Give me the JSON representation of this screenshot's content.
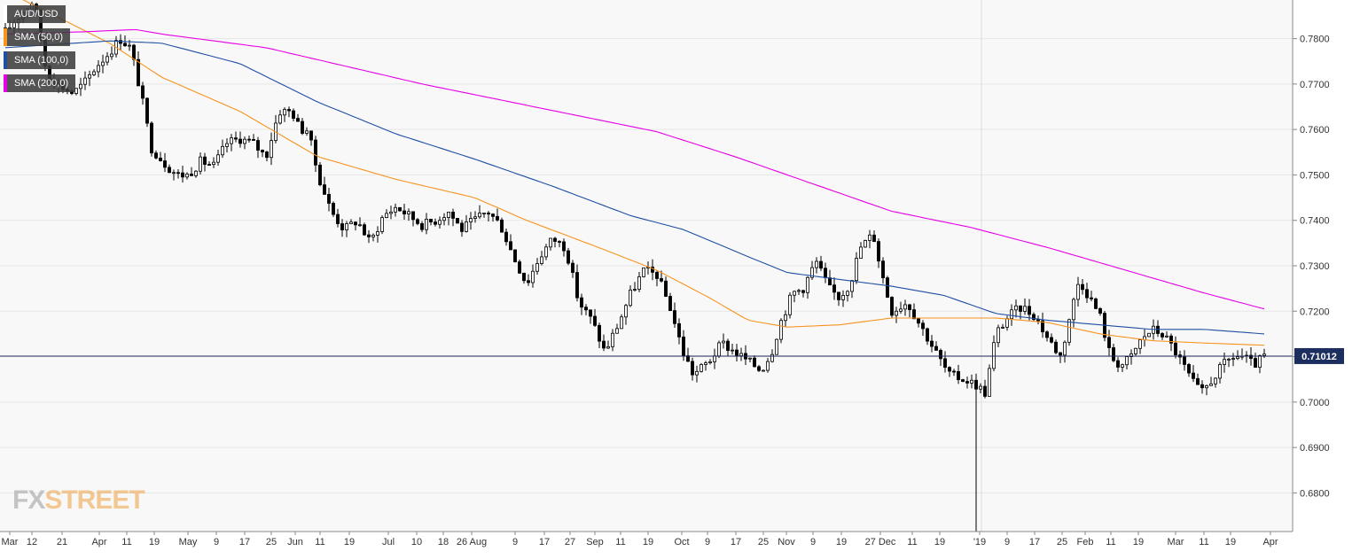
{
  "chart_data": {
    "type": "candlestick",
    "instrument": "AUD/USD",
    "ylim": [
      0.6715,
      0.7885
    ],
    "y_ticks": [
      "0.7800",
      "0.7700",
      "0.7600",
      "0.7500",
      "0.7400",
      "0.7300",
      "0.7200",
      "0.7100",
      "0.7000",
      "0.6900",
      "0.6800"
    ],
    "y_tick_values": [
      0.78,
      0.77,
      0.76,
      0.75,
      0.74,
      0.73,
      0.72,
      0.71,
      0.7,
      0.69,
      0.68
    ],
    "x_tick_labels": [
      "Mar",
      "12",
      "21",
      "Apr",
      "11",
      "19",
      "May",
      "9",
      "17",
      "25",
      "Jun",
      "11",
      "19",
      "Jul",
      "10",
      "18",
      "26 Aug",
      "9",
      "17",
      "27",
      "Sep",
      "11",
      "19",
      "Oct",
      "9",
      "17",
      "25",
      "Nov",
      "9",
      "19",
      "27 Dec",
      "11",
      "19",
      "'19",
      "9",
      "17",
      "25",
      "Feb",
      "11",
      "19",
      "Mar",
      "11",
      "19",
      "Apr"
    ],
    "current_price_label": "0.71012",
    "current_price": 0.71012,
    "year_divider_label": "'19",
    "sessions": 285,
    "anchors": [
      [
        0,
        0.7815
      ],
      [
        6,
        0.7855
      ],
      [
        11,
        0.7885
      ],
      [
        16,
        0.772
      ],
      [
        20,
        0.77
      ],
      [
        26,
        0.768
      ],
      [
        30,
        0.77
      ],
      [
        35,
        0.774
      ],
      [
        40,
        0.777
      ],
      [
        44,
        0.78
      ],
      [
        48,
        0.778
      ],
      [
        52,
        0.768
      ],
      [
        56,
        0.756
      ],
      [
        62,
        0.752
      ],
      [
        66,
        0.75
      ],
      [
        70,
        0.75
      ],
      [
        75,
        0.753
      ],
      [
        80,
        0.752
      ],
      [
        85,
        0.757
      ],
      [
        90,
        0.758
      ],
      [
        95,
        0.757
      ],
      [
        100,
        0.754
      ],
      [
        105,
        0.764
      ],
      [
        110,
        0.764
      ],
      [
        113,
        0.76
      ],
      [
        116,
        0.76
      ],
      [
        120,
        0.75
      ],
      [
        125,
        0.742
      ],
      [
        130,
        0.738
      ],
      [
        135,
        0.74
      ],
      [
        140,
        0.735
      ],
      [
        145,
        0.741
      ],
      [
        150,
        0.743
      ],
      [
        155,
        0.741
      ],
      [
        160,
        0.739
      ],
      [
        165,
        0.74
      ],
      [
        170,
        0.742
      ],
      [
        175,
        0.738
      ],
      [
        180,
        0.74
      ],
      [
        185,
        0.742
      ],
      [
        190,
        0.739
      ],
      [
        195,
        0.732
      ],
      [
        200,
        0.726
      ],
      [
        205,
        0.732
      ],
      [
        210,
        0.736
      ],
      [
        215,
        0.734
      ],
      [
        220,
        0.722
      ],
      [
        225,
        0.718
      ],
      [
        230,
        0.711
      ],
      [
        235,
        0.717
      ],
      [
        240,
        0.724
      ],
      [
        245,
        0.729
      ],
      [
        250,
        0.728
      ],
      [
        255,
        0.721
      ],
      [
        260,
        0.711
      ],
      [
        264,
        0.706
      ],
      [
        270,
        0.709
      ],
      [
        275,
        0.713
      ],
      [
        280,
        0.711
      ],
      [
        285,
        0.709
      ],
      [
        290,
        0.707
      ],
      [
        294,
        0.711
      ],
      [
        297,
        0.717
      ],
      [
        302,
        0.724
      ],
      [
        306,
        0.725
      ],
      [
        311,
        0.731
      ],
      [
        316,
        0.725
      ],
      [
        320,
        0.723
      ],
      [
        324,
        0.726
      ],
      [
        328,
        0.734
      ],
      [
        333,
        0.737
      ],
      [
        336,
        0.729
      ],
      [
        340,
        0.72
      ],
      [
        346,
        0.722
      ],
      [
        350,
        0.718
      ],
      [
        356,
        0.712
      ],
      [
        362,
        0.706
      ],
      [
        368,
        0.705
      ],
      [
        372,
        0.704
      ],
      [
        376,
        0.702
      ],
      [
        380,
        0.715
      ],
      [
        385,
        0.719
      ],
      [
        390,
        0.721
      ],
      [
        395,
        0.719
      ],
      [
        400,
        0.714
      ],
      [
        405,
        0.71
      ],
      [
        408,
        0.718
      ],
      [
        412,
        0.727
      ],
      [
        416,
        0.723
      ],
      [
        420,
        0.719
      ],
      [
        424,
        0.71
      ],
      [
        428,
        0.708
      ],
      [
        432,
        0.71
      ],
      [
        436,
        0.714
      ],
      [
        440,
        0.716
      ],
      [
        444,
        0.715
      ],
      [
        448,
        0.712
      ],
      [
        452,
        0.708
      ],
      [
        456,
        0.704
      ],
      [
        459,
        0.702
      ],
      [
        463,
        0.705
      ],
      [
        467,
        0.708
      ],
      [
        471,
        0.71
      ],
      [
        475,
        0.71
      ],
      [
        479,
        0.708
      ],
      [
        483,
        0.7101
      ]
    ],
    "series": [
      {
        "name": "SMA (50,0)",
        "color": "#f7931e",
        "anchors": [
          [
            0,
            0.7905
          ],
          [
            40,
            0.779
          ],
          [
            60,
            0.7715
          ],
          [
            90,
            0.764
          ],
          [
            120,
            0.754
          ],
          [
            150,
            0.749
          ],
          [
            180,
            0.745
          ],
          [
            200,
            0.74
          ],
          [
            230,
            0.7335
          ],
          [
            250,
            0.729
          ],
          [
            270,
            0.723
          ],
          [
            285,
            0.718
          ],
          [
            300,
            0.7165
          ],
          [
            320,
            0.717
          ],
          [
            340,
            0.7185
          ],
          [
            360,
            0.7185
          ],
          [
            380,
            0.7185
          ],
          [
            400,
            0.7175
          ],
          [
            420,
            0.715
          ],
          [
            440,
            0.7135
          ],
          [
            460,
            0.713
          ],
          [
            483,
            0.7125
          ]
        ]
      },
      {
        "name": "SMA (100,0)",
        "color": "#1f4ea3",
        "anchors": [
          [
            0,
            0.778
          ],
          [
            40,
            0.7795
          ],
          [
            60,
            0.779
          ],
          [
            90,
            0.7745
          ],
          [
            120,
            0.766
          ],
          [
            150,
            0.759
          ],
          [
            180,
            0.7535
          ],
          [
            210,
            0.7475
          ],
          [
            240,
            0.741
          ],
          [
            260,
            0.738
          ],
          [
            285,
            0.732
          ],
          [
            300,
            0.7285
          ],
          [
            320,
            0.727
          ],
          [
            340,
            0.7255
          ],
          [
            360,
            0.7235
          ],
          [
            380,
            0.7195
          ],
          [
            400,
            0.718
          ],
          [
            420,
            0.717
          ],
          [
            440,
            0.716
          ],
          [
            460,
            0.716
          ],
          [
            483,
            0.715
          ]
        ]
      },
      {
        "name": "SMA (200,0)",
        "color": "#e600e6",
        "anchors": [
          [
            0,
            0.781
          ],
          [
            30,
            0.7815
          ],
          [
            50,
            0.782
          ],
          [
            60,
            0.781
          ],
          [
            80,
            0.7795
          ],
          [
            100,
            0.778
          ],
          [
            130,
            0.774
          ],
          [
            160,
            0.77
          ],
          [
            190,
            0.7665
          ],
          [
            220,
            0.763
          ],
          [
            250,
            0.7595
          ],
          [
            280,
            0.754
          ],
          [
            310,
            0.748
          ],
          [
            340,
            0.742
          ],
          [
            370,
            0.7385
          ],
          [
            400,
            0.734
          ],
          [
            430,
            0.729
          ],
          [
            460,
            0.724
          ],
          [
            483,
            0.7205
          ]
        ]
      }
    ]
  }
}
